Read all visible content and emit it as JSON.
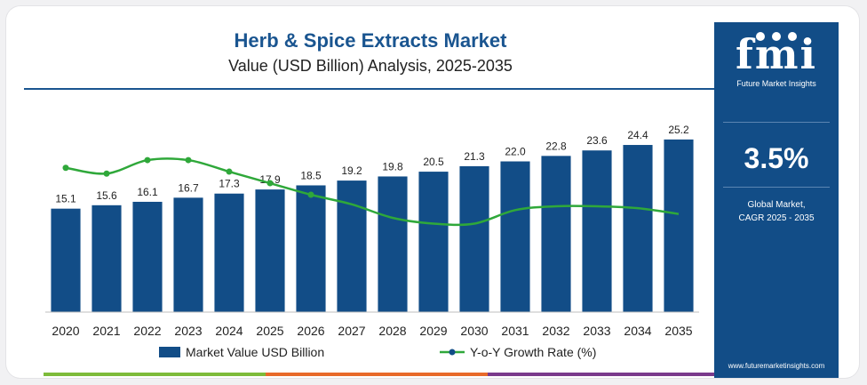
{
  "chart_data": {
    "type": "bar",
    "title": "Herb & Spice Extracts Market",
    "subtitle": "Value (USD Billion) Analysis, 2025-2035",
    "categories": [
      "2020",
      "2021",
      "2022",
      "2023",
      "2024",
      "2025",
      "2026",
      "2027",
      "2028",
      "2029",
      "2030",
      "2031",
      "2032",
      "2033",
      "2034",
      "2035"
    ],
    "series": [
      {
        "name": "Market Value USD Billion",
        "type": "bar",
        "values": [
          15.1,
          15.6,
          16.1,
          16.7,
          17.3,
          17.9,
          18.5,
          19.2,
          19.8,
          20.5,
          21.3,
          22.0,
          22.8,
          23.6,
          24.4,
          25.2
        ],
        "labels": [
          "15.1",
          "15.6",
          "16.1",
          "16.7",
          "17.3",
          "17.9",
          "18.5",
          "19.2",
          "19.8",
          "20.5",
          "21.3",
          "22.0",
          "22.8",
          "23.6",
          "24.4",
          "25.2"
        ],
        "color": "#124d87"
      },
      {
        "name": "Y-o-Y Growth Rate (%)",
        "type": "line",
        "values": [
          3.75,
          3.6,
          3.95,
          3.95,
          3.65,
          3.35,
          3.05,
          2.8,
          2.45,
          2.3,
          2.3,
          2.65,
          2.75,
          2.75,
          2.7,
          2.55
        ],
        "color": "#2fa83a"
      }
    ],
    "ylim": [
      0,
      27
    ],
    "grid": false,
    "legend": "bottom-center"
  },
  "sidebar": {
    "logo_text": "fmi",
    "logo_subtitle": "Future Market Insights",
    "cagr_value": "3.5%",
    "cagr_label_1": "Global Market,",
    "cagr_label_2": "CAGR 2025 - 2035",
    "website": "www.futuremarketinsights.com"
  },
  "colors": {
    "brand": "#124d87",
    "title": "#1a5590",
    "growth_line": "#2fa83a",
    "bottom_bar": [
      "#7dbb3a",
      "#e86a2a",
      "#7a3a8c"
    ]
  }
}
